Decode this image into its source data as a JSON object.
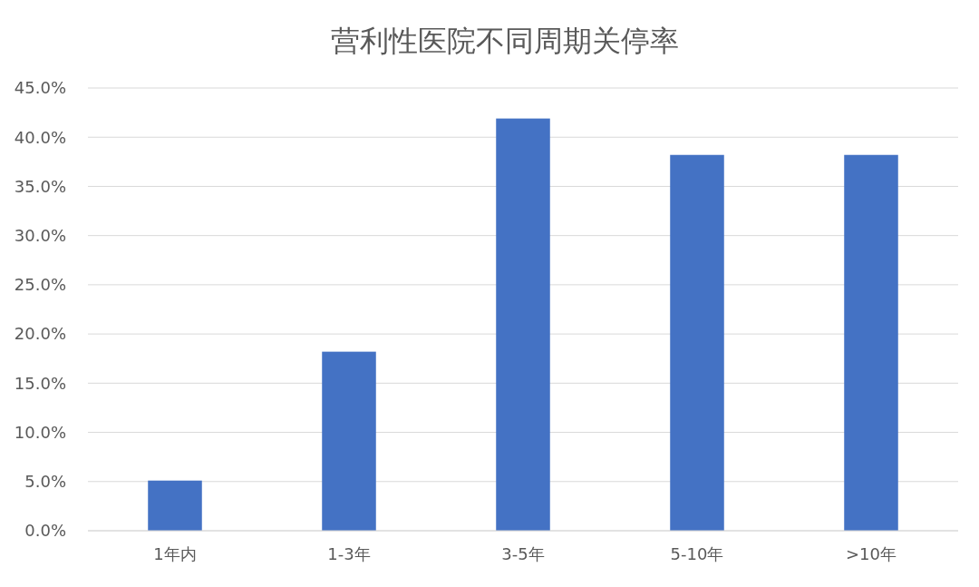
{
  "chart_data": {
    "type": "bar",
    "title": "营利性医院不同周期关停率",
    "categories": [
      "1年内",
      "1-3年",
      "3-5年",
      "5-10年",
      ">10年"
    ],
    "values": [
      5.1,
      18.2,
      41.9,
      38.2,
      38.2
    ],
    "color": "#4472c4",
    "ylim": [
      0,
      45
    ],
    "yticks": [
      {
        "value": 0,
        "label": "0.0%"
      },
      {
        "value": 5,
        "label": "5.0%"
      },
      {
        "value": 10,
        "label": "10.0%"
      },
      {
        "value": 15,
        "label": "15.0%"
      },
      {
        "value": 20,
        "label": "20.0%"
      },
      {
        "value": 25,
        "label": "25.0%"
      },
      {
        "value": 30,
        "label": "30.0%"
      },
      {
        "value": 35,
        "label": "35.0%"
      },
      {
        "value": 40,
        "label": "40.0%"
      },
      {
        "value": 45,
        "label": "45.0%"
      }
    ],
    "grid": true
  }
}
